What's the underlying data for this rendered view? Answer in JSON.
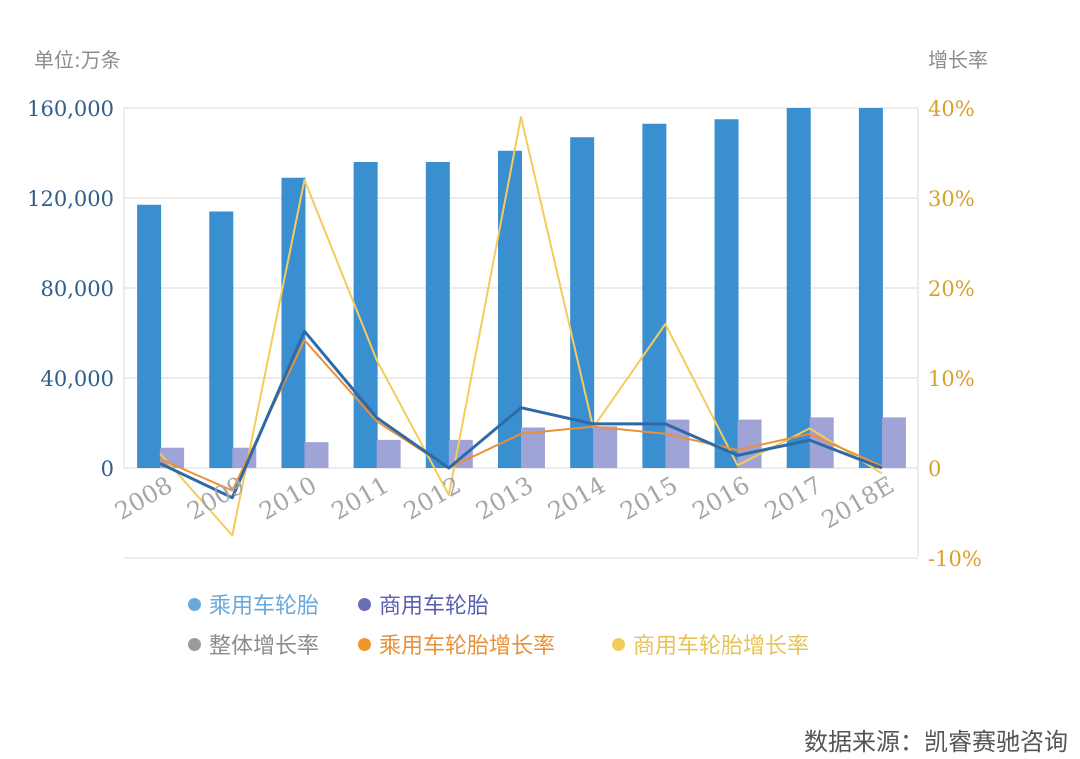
{
  "left_unit_label": "单位:万条",
  "right_unit_label": "增长率",
  "source": "数据来源：凯睿赛驰咨询",
  "colors": {
    "passenger_bar": "#3a8fd1",
    "commercial_bar": "#9fa3d6",
    "overall_line": "#2f6aa8",
    "passenger_line": "#e8913a",
    "commercial_line": "#f2cd5b",
    "left_axis_text": "#2f5d8c",
    "right_axis_text": "#d9a02c",
    "grid": "#d9d9d9",
    "x_label": "#a6a6a6"
  },
  "chart_data": {
    "type": "bar+line",
    "categories": [
      "2008",
      "2009",
      "2010",
      "2011",
      "2012",
      "2013",
      "2014",
      "2015",
      "2016",
      "2017",
      "2018E"
    ],
    "y_left": {
      "lim": [
        0,
        160000
      ],
      "ticks": [
        "160,000",
        "120,000",
        "80,000",
        "40,000",
        "0"
      ],
      "tick_values": [
        160000,
        120000,
        80000,
        40000,
        0
      ]
    },
    "y_right": {
      "lim": [
        -10,
        40
      ],
      "ticks": [
        "40%",
        "30%",
        "20%",
        "10%",
        "0",
        "-10%"
      ],
      "tick_values": [
        40,
        30,
        20,
        10,
        0,
        -10
      ]
    },
    "bars": [
      {
        "name": "乘用车轮胎",
        "values": [
          117000,
          114000,
          129000,
          136000,
          136000,
          141000,
          147000,
          153000,
          155000,
          160000,
          160000
        ]
      },
      {
        "name": "商用车轮胎",
        "values": [
          9000,
          9000,
          11500,
          12500,
          12500,
          18000,
          18500,
          21500,
          21500,
          22500,
          22500
        ]
      }
    ],
    "lines": [
      {
        "name": "整体增长率",
        "values": [
          0.5,
          -3.3,
          15.2,
          5.6,
          0.0,
          6.7,
          4.9,
          4.9,
          1.4,
          3.1,
          0.0
        ]
      },
      {
        "name": "乘用车轮胎增长率",
        "values": [
          1.0,
          -2.5,
          14.2,
          5.2,
          0.0,
          3.8,
          4.6,
          3.8,
          2.0,
          3.8,
          0.2
        ]
      },
      {
        "name": "商用车轮胎增长率",
        "values": [
          1.6,
          -7.5,
          32.0,
          12.0,
          -3.0,
          39.0,
          4.5,
          16.0,
          0.3,
          4.4,
          -0.6
        ]
      }
    ],
    "legend": [
      {
        "label": "乘用车轮胎",
        "dot": "#6aa9db",
        "text": "#6aa9db"
      },
      {
        "label": "商用车轮胎",
        "dot": "#6b6fb8",
        "text": "#5a5fb0"
      },
      {
        "label": "整体增长率",
        "dot": "#9a9a9a",
        "text": "#8c8c8c"
      },
      {
        "label": "乘用车轮胎增长率",
        "dot": "#f0962c",
        "text": "#e8913a"
      },
      {
        "label": "商用车轮胎增长率",
        "dot": "#f2cd5b",
        "text": "#e8c35a"
      }
    ],
    "grid": true,
    "legend_position": "bottom"
  }
}
